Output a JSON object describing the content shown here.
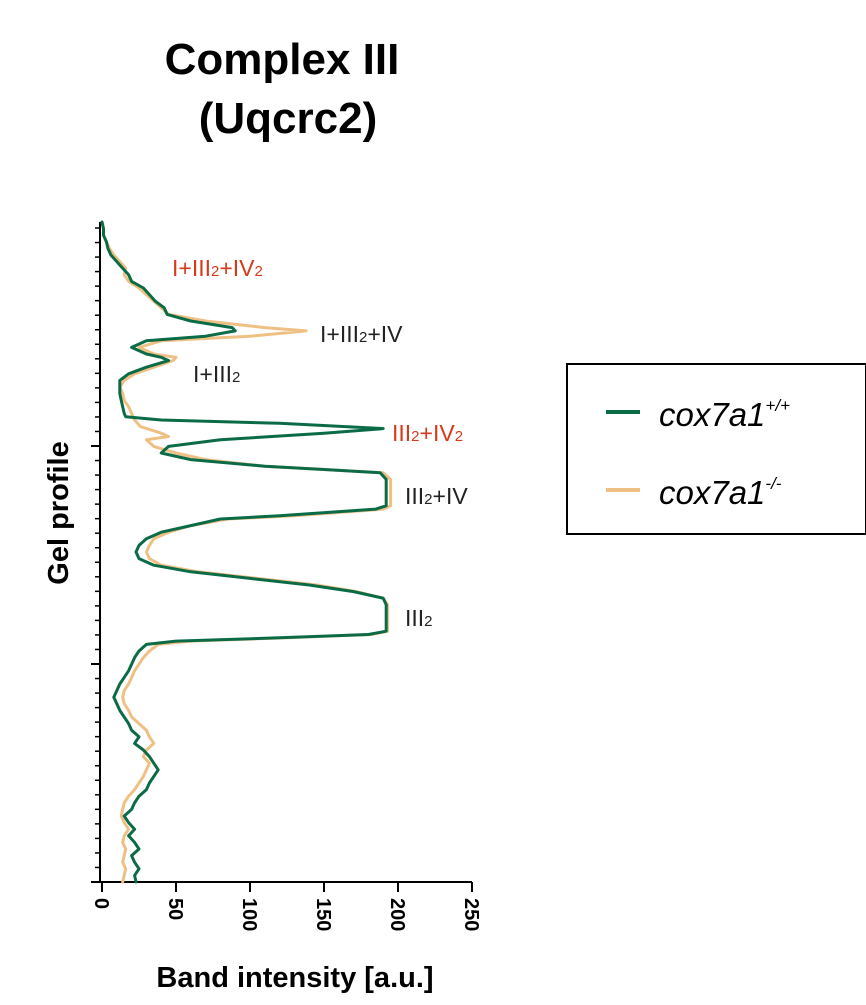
{
  "chart_data": {
    "type": "line",
    "title_line1": "Complex III",
    "title_line2": "(Uqcrc2)",
    "xlabel": "Band intensity [a.u.]",
    "ylabel": "Gel profile",
    "xlim": [
      0,
      250
    ],
    "xticks": [
      "0",
      "50",
      "100",
      "150",
      "200",
      "250"
    ],
    "ylim": [
      0,
      100
    ],
    "profile_axis_note": "profile position 0 = top of gel, 100 = bottom",
    "annotations": [
      {
        "id": "a1",
        "base": "I+III",
        "sub1": "2",
        "mid": "+IV",
        "sub2": "2",
        "tail": "",
        "color": "#d63a1a",
        "y": 7
      },
      {
        "id": "a2",
        "base": "I+III",
        "sub1": "2",
        "mid": "+IV",
        "sub2": "",
        "tail": "",
        "color": "#222222",
        "y": 17
      },
      {
        "id": "a3",
        "base": "I+III",
        "sub1": "2",
        "mid": "",
        "sub2": "",
        "tail": "",
        "color": "#222222",
        "y": 23
      },
      {
        "id": "a4",
        "base": "III",
        "sub1": "2",
        "mid": "+IV",
        "sub2": "2",
        "tail": "",
        "color": "#d63a1a",
        "y": 32
      },
      {
        "id": "a5",
        "base": "III",
        "sub1": "2",
        "mid": "+IV",
        "sub2": "",
        "tail": "",
        "color": "#222222",
        "y": 41.5
      },
      {
        "id": "a6",
        "base": "III",
        "sub1": "2",
        "mid": "",
        "sub2": "",
        "tail": "",
        "color": "#222222",
        "y": 60
      }
    ],
    "legend": {
      "position": "right",
      "entries": [
        {
          "name": "cox7a1",
          "sup": "+/+",
          "color": "#0b6b47"
        },
        {
          "name": "cox7a1",
          "sup": "-/-",
          "color": "#efc084"
        }
      ]
    },
    "series": [
      {
        "name": "cox7a1+/+",
        "color": "#0b6b47",
        "points": [
          [
            0,
            0
          ],
          [
            1,
            1
          ],
          [
            1,
            2
          ],
          [
            3,
            3
          ],
          [
            4,
            4
          ],
          [
            6,
            5
          ],
          [
            10,
            6
          ],
          [
            14,
            7
          ],
          [
            18,
            8
          ],
          [
            20,
            9
          ],
          [
            28,
            10
          ],
          [
            32,
            11
          ],
          [
            36,
            12
          ],
          [
            42,
            13
          ],
          [
            44,
            14
          ],
          [
            60,
            15
          ],
          [
            88,
            16
          ],
          [
            90,
            16.5
          ],
          [
            70,
            17.3
          ],
          [
            30,
            18
          ],
          [
            20,
            19
          ],
          [
            30,
            20
          ],
          [
            40,
            20.5
          ],
          [
            45,
            21
          ],
          [
            30,
            22
          ],
          [
            18,
            23
          ],
          [
            12,
            24
          ],
          [
            12,
            25
          ],
          [
            12,
            26
          ],
          [
            13,
            27
          ],
          [
            14,
            28
          ],
          [
            15,
            29
          ],
          [
            16,
            29.5
          ],
          [
            40,
            30
          ],
          [
            120,
            30.5
          ],
          [
            190,
            31.3
          ],
          [
            150,
            32
          ],
          [
            80,
            33
          ],
          [
            45,
            34
          ],
          [
            40,
            35
          ],
          [
            60,
            36
          ],
          [
            110,
            37
          ],
          [
            150,
            37.5
          ],
          [
            188,
            38
          ],
          [
            192,
            39
          ],
          [
            192,
            40
          ],
          [
            192,
            41
          ],
          [
            192,
            42
          ],
          [
            192,
            43
          ],
          [
            185,
            43.5
          ],
          [
            120,
            44.5
          ],
          [
            80,
            45
          ],
          [
            60,
            46
          ],
          [
            40,
            47
          ],
          [
            30,
            48
          ],
          [
            25,
            49
          ],
          [
            23,
            50
          ],
          [
            25,
            51
          ],
          [
            35,
            52
          ],
          [
            60,
            53
          ],
          [
            100,
            54
          ],
          [
            140,
            55
          ],
          [
            170,
            56
          ],
          [
            190,
            57
          ],
          [
            192,
            58
          ],
          [
            192,
            59
          ],
          [
            192,
            60
          ],
          [
            192,
            61
          ],
          [
            192,
            62
          ],
          [
            180,
            62.5
          ],
          [
            120,
            63
          ],
          [
            50,
            63.5
          ],
          [
            30,
            64
          ],
          [
            25,
            65
          ],
          [
            22,
            66
          ],
          [
            20,
            67
          ],
          [
            18,
            68
          ],
          [
            15,
            69
          ],
          [
            12,
            70
          ],
          [
            10,
            71
          ],
          [
            8,
            72
          ],
          [
            10,
            73
          ],
          [
            12,
            74
          ],
          [
            15,
            75
          ],
          [
            18,
            76
          ],
          [
            20,
            77
          ],
          [
            25,
            78
          ],
          [
            22,
            79
          ],
          [
            28,
            80
          ],
          [
            32,
            81
          ],
          [
            35,
            82
          ],
          [
            38,
            83
          ],
          [
            35,
            84
          ],
          [
            32,
            85
          ],
          [
            30,
            86
          ],
          [
            25,
            87
          ],
          [
            22,
            88
          ],
          [
            20,
            89
          ],
          [
            15,
            90
          ],
          [
            18,
            91
          ],
          [
            22,
            92
          ],
          [
            18,
            93
          ],
          [
            22,
            94
          ],
          [
            25,
            95
          ],
          [
            20,
            96
          ],
          [
            22,
            97
          ],
          [
            25,
            98
          ],
          [
            22,
            99
          ],
          [
            23,
            100
          ]
        ]
      },
      {
        "name": "cox7a1-/-",
        "color": "#efc084",
        "points": [
          [
            0,
            0
          ],
          [
            1,
            1
          ],
          [
            1,
            2
          ],
          [
            3,
            3
          ],
          [
            5,
            4
          ],
          [
            8,
            5
          ],
          [
            12,
            6
          ],
          [
            16,
            7
          ],
          [
            15,
            8
          ],
          [
            18,
            9
          ],
          [
            25,
            10
          ],
          [
            30,
            11
          ],
          [
            35,
            12
          ],
          [
            40,
            13
          ],
          [
            45,
            14
          ],
          [
            70,
            15
          ],
          [
            110,
            16
          ],
          [
            138,
            16.5
          ],
          [
            100,
            17.3
          ],
          [
            40,
            18
          ],
          [
            25,
            19
          ],
          [
            35,
            20
          ],
          [
            50,
            20.5
          ],
          [
            48,
            21
          ],
          [
            35,
            22
          ],
          [
            22,
            23
          ],
          [
            15,
            24
          ],
          [
            12,
            25
          ],
          [
            14,
            26
          ],
          [
            15,
            27
          ],
          [
            18,
            28
          ],
          [
            20,
            29
          ],
          [
            22,
            30
          ],
          [
            26,
            31
          ],
          [
            40,
            32
          ],
          [
            45,
            32.5
          ],
          [
            30,
            33
          ],
          [
            35,
            34
          ],
          [
            50,
            35
          ],
          [
            70,
            36
          ],
          [
            110,
            37
          ],
          [
            150,
            37.5
          ],
          [
            190,
            38
          ],
          [
            195,
            39
          ],
          [
            195,
            40
          ],
          [
            195,
            41
          ],
          [
            195,
            42
          ],
          [
            195,
            43
          ],
          [
            190,
            43.5
          ],
          [
            130,
            44.5
          ],
          [
            85,
            45
          ],
          [
            60,
            46
          ],
          [
            45,
            47
          ],
          [
            35,
            48
          ],
          [
            32,
            49
          ],
          [
            30,
            50
          ],
          [
            32,
            51
          ],
          [
            40,
            52
          ],
          [
            65,
            53
          ],
          [
            105,
            54
          ],
          [
            145,
            55
          ],
          [
            172,
            56
          ],
          [
            190,
            57
          ],
          [
            193,
            58
          ],
          [
            193,
            59
          ],
          [
            193,
            60
          ],
          [
            193,
            61
          ],
          [
            193,
            62
          ],
          [
            182,
            62.5
          ],
          [
            125,
            63
          ],
          [
            60,
            63.5
          ],
          [
            38,
            64
          ],
          [
            32,
            65
          ],
          [
            28,
            66
          ],
          [
            25,
            67
          ],
          [
            22,
            68
          ],
          [
            20,
            69
          ],
          [
            18,
            70
          ],
          [
            15,
            71
          ],
          [
            14,
            72
          ],
          [
            15,
            73
          ],
          [
            18,
            74
          ],
          [
            20,
            75
          ],
          [
            25,
            76
          ],
          [
            30,
            77
          ],
          [
            32,
            78
          ],
          [
            35,
            79
          ],
          [
            30,
            80
          ],
          [
            28,
            81
          ],
          [
            32,
            82
          ],
          [
            30,
            83
          ],
          [
            28,
            84
          ],
          [
            25,
            85
          ],
          [
            22,
            86
          ],
          [
            18,
            87
          ],
          [
            15,
            88
          ],
          [
            14,
            89
          ],
          [
            13,
            90
          ],
          [
            15,
            91
          ],
          [
            18,
            92
          ],
          [
            15,
            93
          ],
          [
            14,
            94
          ],
          [
            16,
            95
          ],
          [
            15,
            96
          ],
          [
            14,
            97
          ],
          [
            16,
            98
          ],
          [
            15,
            99
          ],
          [
            14,
            100
          ]
        ]
      }
    ]
  }
}
